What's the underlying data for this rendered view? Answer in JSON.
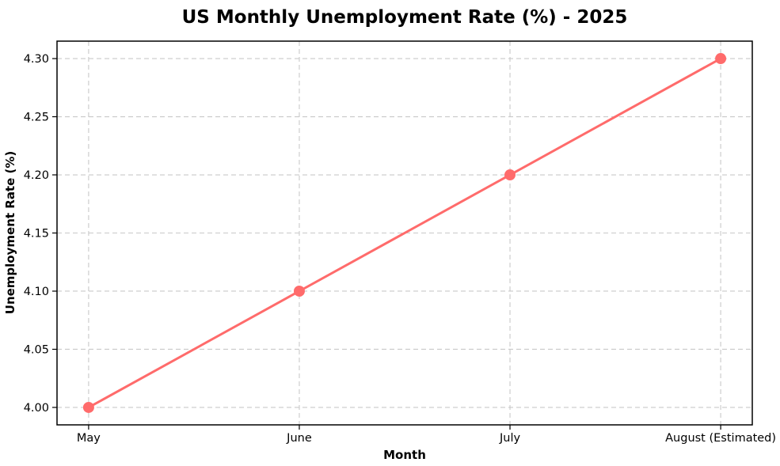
{
  "figure": {
    "background": "#ffffff"
  },
  "chart_data": {
    "type": "line",
    "title": "US Monthly Unemployment Rate (%) - 2025",
    "xlabel": "Month",
    "ylabel": "Unemployment Rate (%)",
    "categories": [
      "May",
      "June",
      "July",
      "August (Estimated)"
    ],
    "series": [
      {
        "name": "Unemployment Rate",
        "values": [
          4.0,
          4.1,
          4.2,
          4.3
        ]
      }
    ],
    "yticks": [
      4.0,
      4.05,
      4.1,
      4.15,
      4.2,
      4.25,
      4.3
    ],
    "ytick_labels": [
      "4.00",
      "4.05",
      "4.10",
      "4.15",
      "4.20",
      "4.25",
      "4.30"
    ],
    "ylim": [
      3.985,
      4.315
    ],
    "grid": true,
    "grid_style": "dashed",
    "legend_position": "none",
    "colors": {
      "line": "#FF6B6B",
      "marker": "#FF6B6B",
      "grid": "#C9C9C9",
      "spine": "#000000",
      "text": "#000000"
    }
  }
}
